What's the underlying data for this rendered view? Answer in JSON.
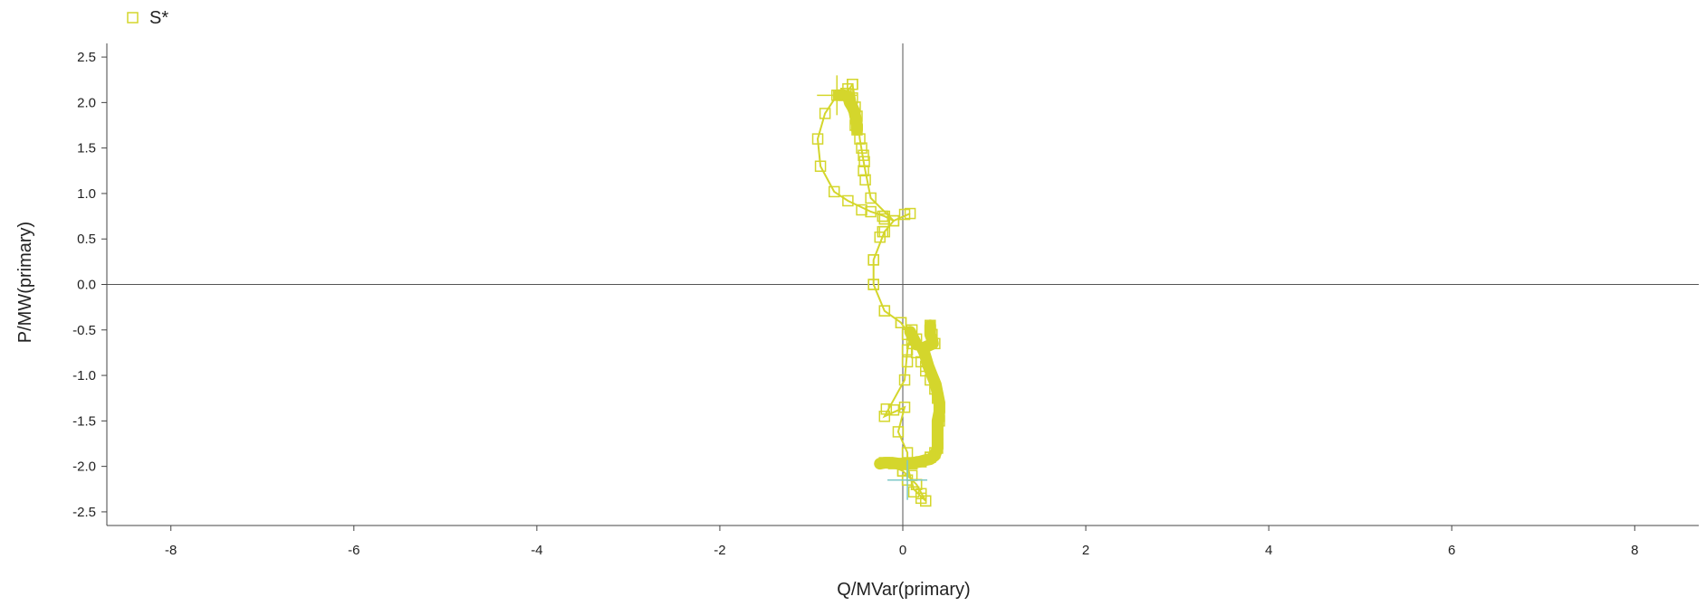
{
  "chart_data": {
    "type": "scatter",
    "xlabel": "Q/MVar(primary)",
    "ylabel": "P/MW(primary)",
    "xlim": [
      -8.7,
      8.7
    ],
    "ylim": [
      -2.65,
      2.65
    ],
    "xticks": [
      "-8",
      "-6",
      "-4",
      "-2",
      "0",
      "2",
      "4",
      "6",
      "8"
    ],
    "xtick_values": [
      -8,
      -6,
      -4,
      -2,
      0,
      2,
      4,
      6,
      8
    ],
    "yticks": [
      "2.5",
      "2.0",
      "1.5",
      "1.0",
      "0.5",
      "0.0",
      "-0.5",
      "-1.0",
      "-1.5",
      "-2.0",
      "-2.5"
    ],
    "ytick_values": [
      2.5,
      2.0,
      1.5,
      1.0,
      0.5,
      0.0,
      -0.5,
      -1.0,
      -1.5,
      -2.0,
      -2.5
    ],
    "zero_lines": true,
    "grid": false,
    "legend_position": "top-left",
    "series": [
      {
        "name": "S*",
        "color": "#d4d62c",
        "marker": "open-square",
        "points": [
          [
            -0.55,
            2.2
          ],
          [
            -0.6,
            2.15
          ],
          [
            -0.7,
            2.08
          ],
          [
            -0.62,
            2.1
          ],
          [
            -0.55,
            2.05
          ],
          [
            -0.52,
            1.95
          ],
          [
            -0.5,
            1.85
          ],
          [
            -0.52,
            1.75
          ],
          [
            -0.5,
            1.7
          ],
          [
            -0.47,
            1.6
          ],
          [
            -0.45,
            1.5
          ],
          [
            -0.43,
            1.42
          ],
          [
            -0.42,
            1.35
          ],
          [
            -0.43,
            1.25
          ],
          [
            -0.41,
            1.15
          ],
          [
            -0.35,
            0.95
          ],
          [
            -0.45,
            0.82
          ],
          [
            -0.2,
            0.72
          ],
          [
            -0.22,
            0.75
          ],
          [
            0.02,
            0.77
          ],
          [
            0.08,
            0.78
          ],
          [
            -0.1,
            0.7
          ],
          [
            -0.22,
            0.58
          ],
          [
            -0.25,
            0.52
          ],
          [
            -0.32,
            0.27
          ],
          [
            -0.32,
            0.0
          ],
          [
            -0.2,
            -0.29
          ],
          [
            -0.02,
            -0.42
          ],
          [
            0.05,
            -0.55
          ],
          [
            0.1,
            -0.65
          ],
          [
            0.15,
            -0.75
          ],
          [
            0.2,
            -0.85
          ],
          [
            0.25,
            -0.95
          ],
          [
            0.3,
            -1.05
          ],
          [
            0.35,
            -1.15
          ],
          [
            0.38,
            -1.25
          ],
          [
            0.4,
            -1.35
          ],
          [
            0.4,
            -1.45
          ],
          [
            0.38,
            -1.55
          ],
          [
            0.38,
            -1.65
          ],
          [
            0.38,
            -1.75
          ],
          [
            0.35,
            -1.85
          ],
          [
            0.3,
            -1.9
          ],
          [
            0.2,
            -1.95
          ],
          [
            0.1,
            -1.97
          ],
          [
            0.0,
            -1.98
          ],
          [
            -0.1,
            -1.97
          ],
          [
            -0.2,
            -1.96
          ],
          [
            0.0,
            -2.05
          ],
          [
            0.1,
            -2.1
          ],
          [
            0.15,
            -2.2
          ],
          [
            0.2,
            -2.3
          ],
          [
            0.25,
            -2.38
          ],
          [
            0.2,
            -2.35
          ],
          [
            0.12,
            -2.28
          ],
          [
            0.05,
            -2.15
          ],
          [
            0.05,
            -1.85
          ],
          [
            -0.05,
            -1.62
          ],
          [
            0.02,
            -1.35
          ],
          [
            -0.1,
            -1.38
          ],
          [
            -0.2,
            -1.45
          ],
          [
            -0.18,
            -1.37
          ],
          [
            0.02,
            -1.05
          ],
          [
            0.05,
            -0.85
          ],
          [
            0.05,
            -0.72
          ],
          [
            0.1,
            -0.5
          ],
          [
            0.15,
            -0.6
          ],
          [
            0.3,
            -0.45
          ],
          [
            0.32,
            -0.55
          ],
          [
            0.35,
            -0.65
          ]
        ],
        "path": [
          [
            -0.55,
            2.2
          ],
          [
            -0.62,
            2.1
          ],
          [
            -0.72,
            2.08
          ],
          [
            -0.85,
            1.88
          ],
          [
            -0.93,
            1.6
          ],
          [
            -0.9,
            1.3
          ],
          [
            -0.75,
            1.02
          ],
          [
            -0.6,
            0.92
          ],
          [
            -0.35,
            0.8
          ],
          [
            -0.2,
            0.75
          ],
          [
            -0.1,
            0.7
          ],
          [
            -0.2,
            0.58
          ],
          [
            -0.32,
            0.27
          ],
          [
            -0.32,
            0.0
          ],
          [
            -0.2,
            -0.29
          ],
          [
            -0.02,
            -0.42
          ],
          [
            0.1,
            -0.6
          ],
          [
            0.25,
            -0.9
          ],
          [
            0.38,
            -1.25
          ],
          [
            0.4,
            -1.5
          ],
          [
            0.38,
            -1.8
          ],
          [
            0.3,
            -1.9
          ],
          [
            0.1,
            -1.97
          ],
          [
            -0.2,
            -1.96
          ],
          [
            0.0,
            -2.05
          ],
          [
            0.15,
            -2.2
          ],
          [
            0.25,
            -2.38
          ]
        ],
        "path2": [
          [
            -0.55,
            2.2
          ],
          [
            -0.5,
            1.9
          ],
          [
            -0.47,
            1.6
          ],
          [
            -0.42,
            1.3
          ],
          [
            -0.35,
            0.95
          ],
          [
            -0.1,
            0.7
          ],
          [
            0.08,
            0.78
          ]
        ],
        "path3": [
          [
            0.25,
            -2.38
          ],
          [
            0.12,
            -2.25
          ],
          [
            0.05,
            -2.0
          ],
          [
            0.05,
            -1.85
          ],
          [
            -0.05,
            -1.62
          ],
          [
            0.02,
            -1.35
          ],
          [
            -0.2,
            -1.45
          ],
          [
            0.02,
            -1.05
          ],
          [
            0.05,
            -0.72
          ],
          [
            0.1,
            -0.5
          ]
        ],
        "dense": [
          [
            -0.7,
            2.08
          ],
          [
            -0.65,
            2.08
          ],
          [
            -0.6,
            2.07
          ],
          [
            -0.58,
            2.0
          ],
          [
            -0.55,
            1.95
          ],
          [
            -0.53,
            1.9
          ],
          [
            -0.52,
            1.85
          ],
          [
            -0.51,
            1.8
          ],
          [
            -0.5,
            1.75
          ],
          [
            -0.5,
            1.7
          ],
          [
            0.3,
            -0.45
          ],
          [
            0.3,
            -0.5
          ],
          [
            0.3,
            -0.55
          ],
          [
            0.32,
            -0.6
          ],
          [
            0.33,
            -0.65
          ],
          [
            0.22,
            -0.7
          ],
          [
            0.25,
            -0.8
          ],
          [
            0.28,
            -0.9
          ],
          [
            0.32,
            -1.0
          ],
          [
            0.36,
            -1.1
          ],
          [
            0.38,
            -1.2
          ],
          [
            0.4,
            -1.3
          ],
          [
            0.4,
            -1.4
          ],
          [
            0.38,
            -1.5
          ],
          [
            0.38,
            -1.6
          ],
          [
            0.38,
            -1.7
          ],
          [
            0.38,
            -1.8
          ],
          [
            0.35,
            -1.88
          ],
          [
            0.3,
            -1.92
          ],
          [
            0.25,
            -1.93
          ],
          [
            0.18,
            -1.95
          ],
          [
            0.12,
            -1.96
          ],
          [
            0.05,
            -1.97
          ],
          [
            -0.05,
            -1.97
          ],
          [
            -0.12,
            -1.96
          ],
          [
            -0.2,
            -1.96
          ],
          [
            -0.25,
            -1.97
          ],
          [
            0.08,
            -0.52
          ],
          [
            0.12,
            -0.6
          ],
          [
            0.15,
            -0.66
          ]
        ]
      }
    ],
    "crosshairs": [
      {
        "x": -0.72,
        "y": 2.08,
        "color": "#d4d62c"
      },
      {
        "x": 0.05,
        "y": -2.15,
        "color": "#7ec8c8"
      }
    ]
  },
  "legend": {
    "label": "S*",
    "color": "#d4d62c"
  }
}
